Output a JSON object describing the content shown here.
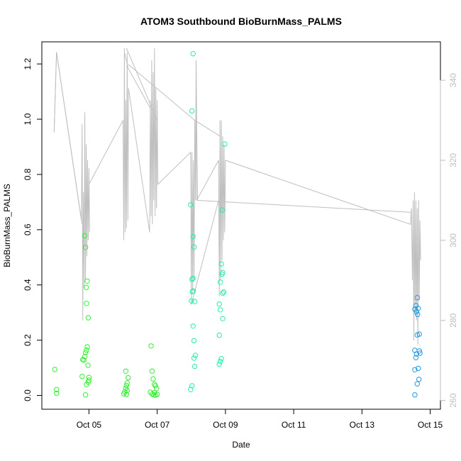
{
  "chart_data": {
    "type": "scatter",
    "title": "ATOM3 Southbound BioBurnMass_PALMS",
    "xlabel": "Date",
    "ylabel": "BioBurnMass_PALMS",
    "x_ticks": [
      {
        "value": 5,
        "label": "Oct 05"
      },
      {
        "value": 7,
        "label": "Oct 07"
      },
      {
        "value": 9,
        "label": "Oct 09"
      },
      {
        "value": 11,
        "label": "Oct 11"
      },
      {
        "value": 13,
        "label": "Oct 13"
      },
      {
        "value": 15,
        "label": "Oct 15"
      }
    ],
    "xlim": [
      3.62,
      15.3
    ],
    "ylim": [
      -0.05,
      1.28
    ],
    "y_ticks": [
      0.0,
      0.2,
      0.4,
      0.6,
      0.8,
      1.0,
      1.2
    ],
    "y_tick_labels": [
      "0.0",
      "0.2",
      "0.4",
      "0.6",
      "0.8",
      "1.0",
      "1.2"
    ],
    "y2lim": [
      257.8,
      349.6
    ],
    "y2_ticks": [
      260,
      280,
      300,
      320,
      340
    ],
    "y2_tick_labels": [
      "260",
      "280",
      "300",
      "320",
      "340"
    ],
    "grid": false,
    "series": [
      {
        "color": "#33ee33",
        "marker": "circle-open",
        "points": [
          [
            4.0,
            0.094
          ],
          [
            4.05,
            0.021
          ],
          [
            4.05,
            0.008
          ],
          [
            4.82,
            0.13
          ],
          [
            4.85,
            0.128
          ],
          [
            4.88,
            0.141
          ],
          [
            4.8,
            0.069
          ],
          [
            4.88,
            0.578
          ],
          [
            4.9,
            0.536
          ],
          [
            4.92,
            0.391
          ],
          [
            4.95,
            0.414
          ],
          [
            4.93,
            0.333
          ],
          [
            4.98,
            0.281
          ],
          [
            4.95,
            0.176
          ],
          [
            4.93,
            0.164
          ],
          [
            4.9,
            0.155
          ],
          [
            4.97,
            0.109
          ],
          [
            5.0,
            0.065
          ],
          [
            5.0,
            0.055
          ],
          [
            4.98,
            0.048
          ],
          [
            4.93,
            0.039
          ],
          [
            4.9,
            0.002
          ],
          [
            6.05,
            0.013
          ],
          [
            6.08,
            0.026
          ],
          [
            6.1,
            0.036
          ],
          [
            6.12,
            0.045
          ],
          [
            6.08,
            0.088
          ],
          [
            6.15,
            0.064
          ],
          [
            6.02,
            0.006
          ],
          [
            6.1,
            0.004
          ],
          [
            6.12,
            0.018
          ],
          [
            6.82,
            0.179
          ],
          [
            6.85,
            0.088
          ],
          [
            6.88,
            0.06
          ],
          [
            6.92,
            0.04
          ],
          [
            6.95,
            0.035
          ],
          [
            6.98,
            0.025
          ],
          [
            6.8,
            0.012
          ],
          [
            6.85,
            0.005
          ],
          [
            6.9,
            0.002
          ],
          [
            6.95,
            0.001
          ],
          [
            7.0,
            0.004
          ],
          [
            6.92,
            0.01
          ]
        ]
      },
      {
        "color": "#22eeaa",
        "marker": "circle-open",
        "points": [
          [
            8.05,
            1.237
          ],
          [
            8.02,
            1.03
          ],
          [
            7.98,
            0.69
          ],
          [
            8.05,
            0.575
          ],
          [
            8.08,
            0.537
          ],
          [
            8.02,
            0.42
          ],
          [
            8.05,
            0.424
          ],
          [
            8.03,
            0.376
          ],
          [
            8.06,
            0.378
          ],
          [
            8.0,
            0.342
          ],
          [
            8.1,
            0.34
          ],
          [
            8.05,
            0.251
          ],
          [
            8.08,
            0.198
          ],
          [
            8.12,
            0.145
          ],
          [
            8.08,
            0.135
          ],
          [
            8.1,
            0.105
          ],
          [
            8.02,
            0.035
          ],
          [
            7.98,
            0.021
          ],
          [
            8.98,
            0.91
          ],
          [
            8.9,
            0.671
          ],
          [
            8.88,
            0.476
          ],
          [
            8.92,
            0.445
          ],
          [
            8.9,
            0.439
          ],
          [
            8.85,
            0.41
          ],
          [
            8.95,
            0.375
          ],
          [
            8.92,
            0.37
          ],
          [
            8.82,
            0.331
          ],
          [
            8.85,
            0.31
          ],
          [
            8.92,
            0.278
          ],
          [
            8.82,
            0.218
          ],
          [
            8.88,
            0.133
          ],
          [
            8.85,
            0.123
          ],
          [
            8.82,
            0.113
          ]
        ]
      },
      {
        "color": "#2299dd",
        "marker": "circle-open",
        "points": [
          [
            14.62,
            0.354
          ],
          [
            14.58,
            0.325
          ],
          [
            14.55,
            0.312
          ],
          [
            14.6,
            0.303
          ],
          [
            14.65,
            0.315
          ],
          [
            14.63,
            0.293
          ],
          [
            14.68,
            0.222
          ],
          [
            14.62,
            0.219
          ],
          [
            14.55,
            0.163
          ],
          [
            14.68,
            0.161
          ],
          [
            14.7,
            0.153
          ],
          [
            14.6,
            0.15
          ],
          [
            14.58,
            0.137
          ],
          [
            14.65,
            0.098
          ],
          [
            14.55,
            0.093
          ],
          [
            14.67,
            0.058
          ],
          [
            14.62,
            0.042
          ],
          [
            14.55,
            0.002
          ]
        ]
      }
    ],
    "secondary_series": {
      "color": "#bfbfbf",
      "type": "line",
      "axis": "right",
      "points": [
        [
          3.98,
          327
        ],
        [
          4.05,
          347
        ],
        [
          4.78,
          305
        ],
        [
          4.8,
          329
        ],
        [
          4.82,
          280
        ],
        [
          4.84,
          312
        ],
        [
          4.86,
          288
        ],
        [
          4.88,
          332
        ],
        [
          4.9,
          290
        ],
        [
          4.92,
          324
        ],
        [
          4.94,
          296
        ],
        [
          4.96,
          320
        ],
        [
          4.98,
          300
        ],
        [
          5.0,
          318
        ],
        [
          5.02,
          302
        ],
        [
          5.0,
          314
        ],
        [
          6.0,
          330
        ],
        [
          6.02,
          300
        ],
        [
          6.04,
          348
        ],
        [
          6.06,
          302
        ],
        [
          6.08,
          335
        ],
        [
          6.1,
          303
        ],
        [
          6.12,
          347
        ],
        [
          6.14,
          305
        ],
        [
          6.16,
          338
        ],
        [
          6.78,
          302
        ],
        [
          6.8,
          335
        ],
        [
          6.82,
          306
        ],
        [
          6.84,
          345
        ],
        [
          6.86,
          304
        ],
        [
          6.88,
          342
        ],
        [
          6.9,
          310
        ],
        [
          6.92,
          348
        ],
        [
          6.94,
          306
        ],
        [
          6.96,
          338
        ],
        [
          6.98,
          308
        ],
        [
          7.0,
          335
        ],
        [
          7.02,
          314
        ],
        [
          7.98,
          322
        ],
        [
          8.0,
          284
        ],
        [
          8.02,
          322
        ],
        [
          8.04,
          287
        ],
        [
          8.06,
          320
        ],
        [
          8.08,
          290
        ],
        [
          8.1,
          330
        ],
        [
          8.12,
          310
        ],
        [
          8.14,
          345
        ],
        [
          8.16,
          310
        ],
        [
          8.8,
          320
        ],
        [
          8.82,
          286
        ],
        [
          8.84,
          330
        ],
        [
          8.86,
          290
        ],
        [
          8.88,
          330
        ],
        [
          8.9,
          295
        ],
        [
          8.92,
          326
        ],
        [
          8.94,
          300
        ],
        [
          8.96,
          324
        ],
        [
          8.98,
          302
        ],
        [
          9.0,
          320
        ],
        [
          14.42,
          304
        ],
        [
          14.45,
          308
        ],
        [
          14.48,
          290
        ],
        [
          14.5,
          310
        ],
        [
          14.52,
          275
        ],
        [
          14.54,
          312
        ],
        [
          14.56,
          282
        ],
        [
          14.58,
          310
        ],
        [
          14.6,
          280
        ],
        [
          14.62,
          308
        ],
        [
          14.64,
          274
        ],
        [
          14.66,
          310
        ],
        [
          14.68,
          285
        ],
        [
          14.7,
          305
        ],
        [
          14.72,
          295
        ]
      ],
      "connectors": [
        [
          [
            3.98,
            327
          ],
          [
            4.05,
            347
          ],
          [
            4.8,
            304
          ]
        ],
        [
          [
            6.04,
            347
          ],
          [
            6.15,
            343
          ],
          [
            6.8,
            333
          ]
        ],
        [
          [
            6.1,
            348
          ],
          [
            7.0,
            330
          ]
        ],
        [
          [
            6.15,
            344
          ],
          [
            8.1,
            330
          ]
        ],
        [
          [
            8.14,
            345
          ],
          [
            8.18,
            310
          ],
          [
            14.45,
            307
          ]
        ],
        [
          [
            8.0,
            284
          ],
          [
            8.8,
            310
          ]
        ],
        [
          [
            8.1,
            330
          ],
          [
            8.85,
            326
          ]
        ]
      ]
    }
  }
}
